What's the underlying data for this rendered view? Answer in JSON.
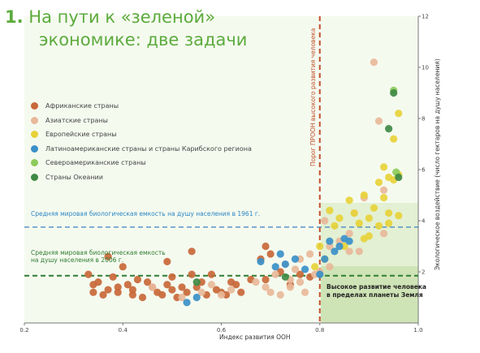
{
  "title": {
    "number": "1.",
    "line1": "На  пути  к  «зеленой»",
    "line2": "экономике: две задачи"
  },
  "legend": [
    {
      "label": "Африканские страны",
      "color": "#c8683a"
    },
    {
      "label": "Азиатские страны",
      "color": "#e8b89a"
    },
    {
      "label": "Европейские страны",
      "color": "#e7d23a"
    },
    {
      "label": "Латиноамериканские страны и страны Карибского региона",
      "color": "#3a90c8"
    },
    {
      "label": "Североамериканские страны",
      "color": "#8ccb5a"
    },
    {
      "label": "Страны Океании",
      "color": "#3f8a45"
    }
  ],
  "annotations": {
    "line_1961": "Средняя мировая биологическая емкость на душу населения в 1961 г.",
    "line_2006_a": "Средняя мировая биологическая емкость",
    "line_2006_b": "на душу населения в 2006 г.",
    "target_a": "Высокое развитие человека",
    "target_b": "в пределах планеты Земля",
    "threshold": "Порог ПРООН высокого развития человека"
  },
  "chart_data": {
    "type": "scatter",
    "xlabel": "Индекс развития ООН",
    "ylabel": "Экологическое воздействие (число гектаров на душу населения)",
    "xlim": [
      0.2,
      1.0
    ],
    "ylim": [
      0,
      12
    ],
    "x_ticks": [
      "0.2",
      "0.4",
      "0.6",
      "0.8",
      "1.0"
    ],
    "y_ticks": [
      "2",
      "4",
      "6",
      "8",
      "10",
      "12"
    ],
    "reference_lines": {
      "biocapacity_1961": 3.75,
      "biocapacity_2006": 1.85,
      "hdi_threshold": 0.8
    },
    "series": [
      {
        "name": "Африканские страны",
        "color": "#c8683a",
        "points": [
          [
            0.33,
            1.9
          ],
          [
            0.34,
            1.2
          ],
          [
            0.34,
            1.5
          ],
          [
            0.35,
            1.6
          ],
          [
            0.36,
            1.1
          ],
          [
            0.37,
            2.6
          ],
          [
            0.37,
            1.3
          ],
          [
            0.38,
            1.8
          ],
          [
            0.39,
            1.4
          ],
          [
            0.39,
            1.2
          ],
          [
            0.4,
            2.2
          ],
          [
            0.41,
            1.5
          ],
          [
            0.42,
            1.1
          ],
          [
            0.42,
            1.3
          ],
          [
            0.43,
            1.7
          ],
          [
            0.44,
            1.0
          ],
          [
            0.45,
            1.6
          ],
          [
            0.46,
            1.4
          ],
          [
            0.47,
            1.2
          ],
          [
            0.48,
            1.1
          ],
          [
            0.49,
            2.4
          ],
          [
            0.49,
            1.5
          ],
          [
            0.5,
            1.8
          ],
          [
            0.5,
            1.3
          ],
          [
            0.51,
            1.0
          ],
          [
            0.52,
            1.4
          ],
          [
            0.53,
            1.2
          ],
          [
            0.54,
            1.9
          ],
          [
            0.54,
            2.8
          ],
          [
            0.55,
            1.4
          ],
          [
            0.56,
            1.6
          ],
          [
            0.57,
            1.1
          ],
          [
            0.58,
            1.9
          ],
          [
            0.59,
            1.3
          ],
          [
            0.6,
            1.2
          ],
          [
            0.61,
            1.1
          ],
          [
            0.62,
            1.6
          ],
          [
            0.63,
            1.5
          ],
          [
            0.64,
            1.2
          ],
          [
            0.66,
            1.7
          ],
          [
            0.68,
            2.5
          ],
          [
            0.69,
            3.0
          ],
          [
            0.69,
            1.7
          ],
          [
            0.7,
            2.7
          ],
          [
            0.72,
            2.0
          ],
          [
            0.74,
            1.5
          ],
          [
            0.76,
            1.9
          ],
          [
            0.78,
            1.8
          ]
        ]
      },
      {
        "name": "Азиатские страны",
        "color": "#e8b89a",
        "points": [
          [
            0.46,
            1.4
          ],
          [
            0.52,
            1.0
          ],
          [
            0.56,
            1.2
          ],
          [
            0.58,
            1.5
          ],
          [
            0.6,
            1.1
          ],
          [
            0.62,
            1.3
          ],
          [
            0.67,
            1.6
          ],
          [
            0.69,
            1.4
          ],
          [
            0.7,
            1.2
          ],
          [
            0.71,
            1.9
          ],
          [
            0.72,
            1.1
          ],
          [
            0.73,
            2.3
          ],
          [
            0.74,
            1.7
          ],
          [
            0.74,
            1.4
          ],
          [
            0.75,
            2.1
          ],
          [
            0.76,
            2.5
          ],
          [
            0.76,
            1.6
          ],
          [
            0.77,
            1.2
          ],
          [
            0.78,
            2.7
          ],
          [
            0.79,
            1.9
          ],
          [
            0.8,
            2.0
          ],
          [
            0.81,
            4.0
          ],
          [
            0.82,
            3.0
          ],
          [
            0.82,
            2.2
          ],
          [
            0.84,
            3.2
          ],
          [
            0.86,
            3.5
          ],
          [
            0.86,
            2.8
          ],
          [
            0.87,
            4.3
          ],
          [
            0.88,
            2.8
          ],
          [
            0.89,
            4.9
          ],
          [
            0.91,
            10.2
          ],
          [
            0.92,
            7.9
          ],
          [
            0.93,
            5.2
          ],
          [
            0.93,
            3.5
          ]
        ]
      },
      {
        "name": "Европейские страны",
        "color": "#e7d23a",
        "points": [
          [
            0.79,
            2.2
          ],
          [
            0.8,
            3.0
          ],
          [
            0.81,
            2.5
          ],
          [
            0.82,
            4.4
          ],
          [
            0.83,
            3.8
          ],
          [
            0.84,
            4.1
          ],
          [
            0.85,
            3.0
          ],
          [
            0.86,
            4.8
          ],
          [
            0.87,
            4.3
          ],
          [
            0.88,
            3.9
          ],
          [
            0.89,
            3.3
          ],
          [
            0.89,
            5.0
          ],
          [
            0.9,
            4.1
          ],
          [
            0.9,
            3.4
          ],
          [
            0.91,
            4.5
          ],
          [
            0.92,
            5.5
          ],
          [
            0.92,
            3.8
          ],
          [
            0.93,
            4.9
          ],
          [
            0.93,
            6.1
          ],
          [
            0.94,
            4.3
          ],
          [
            0.94,
            3.9
          ],
          [
            0.94,
            5.7
          ],
          [
            0.95,
            5.6
          ],
          [
            0.95,
            7.2
          ],
          [
            0.96,
            5.8
          ],
          [
            0.96,
            8.2
          ],
          [
            0.96,
            4.2
          ]
        ]
      },
      {
        "name": "Латиноамериканские страны и страны Карибского региона",
        "color": "#3a90c8",
        "points": [
          [
            0.53,
            0.8
          ],
          [
            0.55,
            1.0
          ],
          [
            0.68,
            2.4
          ],
          [
            0.71,
            2.2
          ],
          [
            0.72,
            2.7
          ],
          [
            0.73,
            2.3
          ],
          [
            0.75,
            2.5
          ],
          [
            0.77,
            2.1
          ],
          [
            0.8,
            1.9
          ],
          [
            0.81,
            2.5
          ],
          [
            0.82,
            3.2
          ],
          [
            0.83,
            2.8
          ],
          [
            0.84,
            3.0
          ],
          [
            0.85,
            3.3
          ],
          [
            0.86,
            3.2
          ]
        ]
      },
      {
        "name": "Североамериканские страны",
        "color": "#8ccb5a",
        "points": [
          [
            0.955,
            5.9
          ],
          [
            0.95,
            9.1
          ]
        ]
      },
      {
        "name": "Страны Океании",
        "color": "#3f8a45",
        "points": [
          [
            0.55,
            1.6
          ],
          [
            0.73,
            1.8
          ],
          [
            0.94,
            7.6
          ],
          [
            0.95,
            9.0
          ],
          [
            0.96,
            5.7
          ]
        ]
      }
    ]
  }
}
